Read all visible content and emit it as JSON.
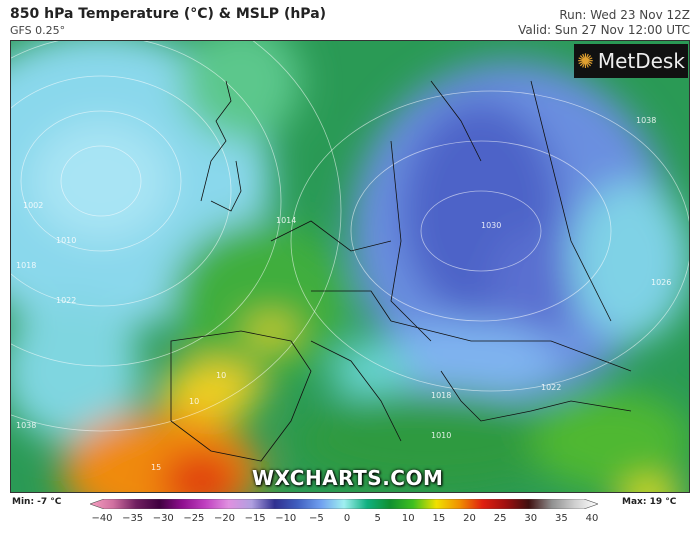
{
  "header": {
    "title": "850 hPa Temperature (°C) & MSLP (hPa)",
    "model": "GFS 0.25°",
    "run": "Run: Wed 23 Nov 12Z",
    "valid": "Valid: Sun 27 Nov 12:00 UTC"
  },
  "logo": {
    "text": "MetDesk",
    "icon": "metdesk-burst-icon"
  },
  "watermark": "WXCHARTS.COM",
  "isobar_labels": [
    "1002",
    "1010",
    "1018",
    "1022",
    "1014",
    "1030",
    "1038",
    "1026",
    "1022",
    "1010",
    "1018",
    "1038",
    "10",
    "15",
    "10"
  ],
  "legend": {
    "min_label": "Min: -7 °C",
    "max_label": "Max: 19 °C",
    "ticks": [
      "−40",
      "−35",
      "−30",
      "−25",
      "−20",
      "−15",
      "−10",
      "−5",
      "0",
      "5",
      "10",
      "15",
      "20",
      "25",
      "30",
      "35",
      "40"
    ],
    "range": [
      -40,
      40
    ],
    "colors": [
      "#f6a0c0",
      "#d070a0",
      "#702060",
      "#400040",
      "#901090",
      "#c040c0",
      "#e090e0",
      "#b0a0e0",
      "#303090",
      "#4060c0",
      "#70a0f0",
      "#a0f0f0",
      "#10b080",
      "#109030",
      "#40c020",
      "#f0e000",
      "#f09000",
      "#e02010",
      "#a01010",
      "#401010",
      "#909090",
      "#d0d0d0",
      "#ffffff"
    ]
  }
}
